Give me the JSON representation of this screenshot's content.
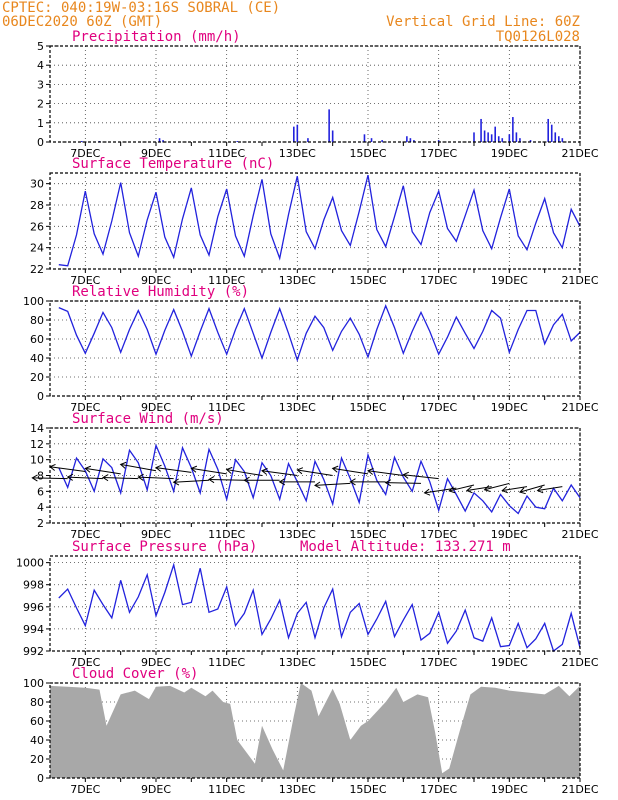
{
  "header": {
    "line1_left": "CPTEC:   040:19W-03:16S   SOBRAL (CE)",
    "line2_left": "06DEC2020 60Z (GMT)",
    "line1_right": "Vertical Grid Line: 60Z",
    "line2_right": "TQ0126L028"
  },
  "colors": {
    "header": "#e8871e",
    "title": "#e0007f",
    "series": "#2222dd",
    "cloud": "#a8a8a8",
    "wind_arrow": "#000000"
  },
  "x_ticks": [
    "7DEC",
    "9DEC",
    "11DEC",
    "13DEC",
    "15DEC",
    "17DEC",
    "19DEC",
    "21DEC"
  ],
  "chart_data": [
    {
      "type": "bar",
      "title": "Precipitation (mm/h)",
      "ylim": [
        0,
        5
      ],
      "yticks": [
        0,
        1,
        2,
        3,
        4,
        5
      ],
      "x": [
        6.9,
        7.4,
        9.1,
        9.2,
        11.3,
        12.9,
        13.0,
        13.3,
        13.9,
        14.0,
        14.0,
        14.9,
        15.1,
        15.4,
        16.1,
        16.2,
        16.3,
        17.0,
        18.0,
        18.2,
        18.3,
        18.4,
        18.5,
        18.6,
        18.7,
        18.8,
        19.0,
        19.1,
        19.2,
        19.3,
        19.6,
        20.1,
        20.2,
        20.3,
        20.4,
        20.5
      ],
      "values": [
        0.05,
        0.05,
        0.2,
        0.1,
        0.05,
        0.8,
        0.9,
        0.2,
        1.7,
        0.6,
        0.1,
        0.4,
        0.2,
        0.1,
        0.3,
        0.2,
        0.1,
        0.1,
        0.5,
        1.2,
        0.6,
        0.5,
        0.4,
        0.8,
        0.3,
        0.2,
        0.4,
        1.3,
        0.5,
        0.2,
        0.1,
        1.2,
        0.9,
        0.5,
        0.3,
        0.2
      ],
      "grid": true
    },
    {
      "type": "line",
      "title": "Surface Temperature (nC)",
      "ylim": [
        22,
        31
      ],
      "yticks": [
        22,
        24,
        26,
        28,
        30
      ],
      "series": [
        {
          "x": [
            6.25,
            6.5,
            6.75,
            7.0,
            7.25,
            7.5,
            7.75,
            8.0,
            8.25,
            8.5,
            8.75,
            9.0,
            9.25,
            9.5,
            9.75,
            10.0,
            10.25,
            10.5,
            10.75,
            11.0,
            11.25,
            11.5,
            11.75,
            12.0,
            12.25,
            12.5,
            12.75,
            13.0,
            13.25,
            13.5,
            13.75,
            14.0,
            14.25,
            14.5,
            14.75,
            15.0,
            15.25,
            15.5,
            15.75,
            16.0,
            16.25,
            16.5,
            16.75,
            17.0,
            17.25,
            17.5,
            17.75,
            18.0,
            18.25,
            18.5,
            18.75,
            19.0,
            19.25,
            19.5,
            19.75,
            20.0,
            20.25,
            20.5,
            20.75,
            21.0
          ],
          "values": [
            22.4,
            22.3,
            25.2,
            29.3,
            25.3,
            23.4,
            26.5,
            30.1,
            25.4,
            23.2,
            26.6,
            29.2,
            25.0,
            23.1,
            26.7,
            29.6,
            25.2,
            23.3,
            26.9,
            29.5,
            25.1,
            23.2,
            27.0,
            30.4,
            25.3,
            23.0,
            27.1,
            30.7,
            25.5,
            23.9,
            26.6,
            28.7,
            25.6,
            24.2,
            27.4,
            30.8,
            25.7,
            24.1,
            26.9,
            29.8,
            25.5,
            24.3,
            27.3,
            29.3,
            25.8,
            24.6,
            27.0,
            29.4,
            25.6,
            23.9,
            26.8,
            29.5,
            25.1,
            23.8,
            26.3,
            28.6,
            25.4,
            24.0,
            27.6,
            26.0
          ]
        }
      ],
      "grid": true
    },
    {
      "type": "line",
      "title": "Relative Humidity (%)",
      "ylim": [
        0,
        100
      ],
      "yticks": [
        0,
        20,
        40,
        60,
        80,
        100
      ],
      "series": [
        {
          "x": [
            6.25,
            6.5,
            6.75,
            7.0,
            7.25,
            7.5,
            7.75,
            8.0,
            8.25,
            8.5,
            8.75,
            9.0,
            9.25,
            9.5,
            9.75,
            10.0,
            10.25,
            10.5,
            10.75,
            11.0,
            11.25,
            11.5,
            11.75,
            12.0,
            12.25,
            12.5,
            12.75,
            13.0,
            13.25,
            13.5,
            13.75,
            14.0,
            14.25,
            14.5,
            14.75,
            15.0,
            15.25,
            15.5,
            15.75,
            16.0,
            16.25,
            16.5,
            16.75,
            17.0,
            17.25,
            17.5,
            17.75,
            18.0,
            18.25,
            18.5,
            18.75,
            19.0,
            19.25,
            19.5,
            19.75,
            20.0,
            20.25,
            20.5,
            20.75,
            21.0
          ],
          "values": [
            93,
            89,
            64,
            45,
            66,
            88,
            72,
            46,
            70,
            90,
            70,
            44,
            69,
            91,
            68,
            42,
            68,
            92,
            67,
            44,
            70,
            92,
            66,
            40,
            67,
            92,
            66,
            38,
            66,
            84,
            72,
            48,
            68,
            82,
            65,
            41,
            70,
            95,
            72,
            45,
            68,
            88,
            68,
            44,
            62,
            83,
            66,
            50,
            68,
            90,
            82,
            46,
            70,
            90,
            90,
            55,
            75,
            86,
            58,
            67
          ]
        }
      ],
      "grid": true
    },
    {
      "type": "line",
      "title": "Surface Wind (m/s)",
      "ylim": [
        2,
        14
      ],
      "yticks": [
        2,
        4,
        6,
        8,
        10,
        12,
        14
      ],
      "series": [
        {
          "x": [
            6.25,
            6.5,
            6.75,
            7.0,
            7.25,
            7.5,
            7.75,
            8.0,
            8.25,
            8.5,
            8.75,
            9.0,
            9.25,
            9.5,
            9.75,
            10.0,
            10.25,
            10.5,
            10.75,
            11.0,
            11.25,
            11.5,
            11.75,
            12.0,
            12.25,
            12.5,
            12.75,
            13.0,
            13.25,
            13.5,
            13.75,
            14.0,
            14.25,
            14.5,
            14.75,
            15.0,
            15.25,
            15.5,
            15.75,
            16.0,
            16.25,
            16.5,
            16.75,
            17.0,
            17.25,
            17.5,
            17.75,
            18.0,
            18.25,
            18.5,
            18.75,
            19.0,
            19.25,
            19.5,
            19.75,
            20.0,
            20.25,
            20.5,
            20.75,
            21.0
          ],
          "values": [
            9,
            6.5,
            10.2,
            8.6,
            6.0,
            10.1,
            9.0,
            5.8,
            11.2,
            9.6,
            6.2,
            11.8,
            9.2,
            6.0,
            11.5,
            9.0,
            5.8,
            11.3,
            8.8,
            5.0,
            10.0,
            8.5,
            5.2,
            9.6,
            8.0,
            5.0,
            9.5,
            7.2,
            4.8,
            9.8,
            7.5,
            4.4,
            10.2,
            7.6,
            4.6,
            10.6,
            7.4,
            5.6,
            10.3,
            7.8,
            6.0,
            9.8,
            7.2,
            3.6,
            7.6,
            5.6,
            3.5,
            5.8,
            4.8,
            3.4,
            5.6,
            4.2,
            3.2,
            5.4,
            4.0,
            3.8,
            6.4,
            4.8,
            6.8,
            5.2
          ]
        }
      ],
      "wind_vectors": {
        "x": [
          6.5,
          7.0,
          7.5,
          8.0,
          8.5,
          9.0,
          9.5,
          10.0,
          10.5,
          11.0,
          11.5,
          12.0,
          12.5,
          13.0,
          13.5,
          14.0,
          14.5,
          15.0,
          15.5,
          16.0,
          16.5,
          17.0,
          17.5,
          18.0,
          18.5,
          19.0,
          19.5,
          20.0,
          20.5
        ],
        "y": [
          7.6,
          8.5,
          7.6,
          8.2,
          7.6,
          8.6,
          7.6,
          8.4,
          7.4,
          8.2,
          7.4,
          8.0,
          7.4,
          8.0,
          7.2,
          8.0,
          7.0,
          8.2,
          7.2,
          8.0,
          7.0,
          7.6,
          6.4,
          6.8,
          6.6,
          7.0,
          6.6,
          6.8,
          6.6
        ],
        "dx": [
          1.0,
          1.0,
          1.0,
          1.0,
          1.0,
          1.0,
          1.0,
          1.0,
          1.0,
          1.0,
          1.0,
          1.0,
          1.0,
          1.0,
          1.0,
          1.0,
          1.0,
          1.0,
          1.0,
          1.0,
          1.0,
          1.0,
          0.9,
          0.7,
          0.7,
          0.7,
          0.7,
          0.7,
          0.7
        ],
        "dy": [
          0.2,
          1.2,
          0.4,
          1.4,
          0.3,
          1.6,
          0.4,
          1.2,
          -0.5,
          1.4,
          0.2,
          1.5,
          0.0,
          1.2,
          0.0,
          1.4,
          -0.5,
          1.4,
          0.0,
          1.2,
          0.2,
          1.0,
          -1.2,
          -1.5,
          -1.0,
          -1.6,
          -1.0,
          -1.8,
          -1.0
        ]
      },
      "grid": true
    },
    {
      "type": "line",
      "title": "Surface Pressure (hPa)",
      "annotation": "Model Altitude: 133.271 m",
      "ylim": [
        992,
        1000.6
      ],
      "yticks": [
        992,
        994,
        996,
        998,
        1000
      ],
      "series": [
        {
          "x": [
            6.25,
            6.5,
            6.75,
            7.0,
            7.25,
            7.5,
            7.75,
            8.0,
            8.25,
            8.5,
            8.75,
            9.0,
            9.25,
            9.5,
            9.75,
            10.0,
            10.25,
            10.5,
            10.75,
            11.0,
            11.25,
            11.5,
            11.75,
            12.0,
            12.25,
            12.5,
            12.75,
            13.0,
            13.25,
            13.5,
            13.75,
            14.0,
            14.25,
            14.5,
            14.75,
            15.0,
            15.25,
            15.5,
            15.75,
            16.0,
            16.25,
            16.5,
            16.75,
            17.0,
            17.25,
            17.5,
            17.75,
            18.0,
            18.25,
            18.5,
            18.75,
            19.0,
            19.25,
            19.5,
            19.75,
            20.0,
            20.25,
            20.5,
            20.75,
            21.0
          ],
          "values": [
            996.8,
            997.6,
            995.9,
            994.3,
            997.5,
            996.2,
            995.0,
            998.4,
            995.5,
            996.9,
            998.9,
            995.2,
            997.3,
            999.8,
            996.2,
            996.4,
            999.5,
            995.5,
            995.8,
            997.8,
            994.3,
            995.4,
            997.5,
            993.5,
            994.9,
            996.6,
            993.2,
            995.4,
            996.4,
            993.2,
            995.9,
            997.6,
            993.3,
            995.5,
            996.3,
            993.5,
            994.9,
            996.5,
            993.3,
            994.8,
            996.2,
            993.0,
            993.6,
            995.5,
            992.7,
            993.8,
            995.7,
            993.2,
            992.9,
            995.0,
            992.4,
            992.5,
            994.5,
            992.3,
            993.1,
            994.5,
            992.0,
            992.6,
            995.4,
            992.3
          ]
        }
      ],
      "grid": true
    },
    {
      "type": "area",
      "title": "Cloud Cover (%)",
      "ylim": [
        0,
        100
      ],
      "yticks": [
        0,
        20,
        40,
        60,
        80,
        100
      ],
      "x": [
        6.0,
        6.5,
        7.0,
        7.4,
        7.6,
        8.0,
        8.4,
        8.8,
        9.0,
        9.4,
        9.8,
        10.0,
        10.4,
        10.6,
        10.9,
        11.1,
        11.3,
        11.6,
        11.8,
        12.0,
        12.3,
        12.6,
        12.9,
        13.1,
        13.4,
        13.6,
        14.0,
        14.2,
        14.5,
        14.8,
        15.0,
        15.5,
        15.8,
        16.0,
        16.4,
        16.7,
        16.9,
        17.1,
        17.3,
        17.6,
        17.9,
        18.2,
        18.6,
        19.0,
        19.5,
        20.0,
        20.4,
        20.7,
        21.0
      ],
      "values": [
        97,
        96,
        95,
        93,
        55,
        88,
        92,
        83,
        96,
        97,
        90,
        95,
        86,
        92,
        80,
        78,
        40,
        25,
        15,
        55,
        30,
        8,
        65,
        100,
        92,
        65,
        94,
        78,
        40,
        55,
        60,
        80,
        95,
        80,
        88,
        85,
        48,
        5,
        10,
        50,
        88,
        96,
        95,
        92,
        90,
        88,
        97,
        86,
        97
      ],
      "grid": true
    }
  ]
}
